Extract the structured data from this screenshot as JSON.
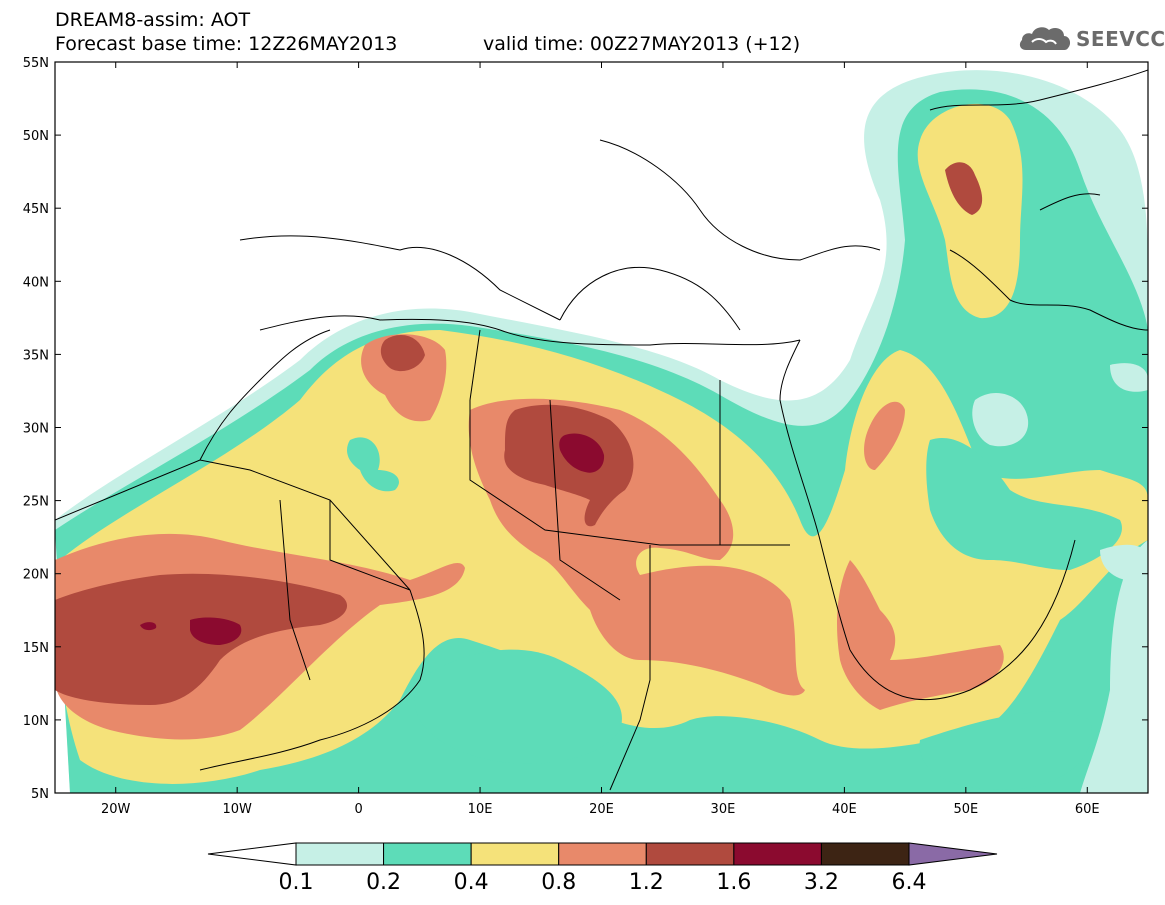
{
  "header": {
    "title_line1": "DREAM8-assim: AOT",
    "title_line2": "Forecast base time: 12Z26MAY2013",
    "valid_time": "valid time: 00Z27MAY2013 (+12)"
  },
  "logo": {
    "name": "cloud-icon",
    "text": "SEEVCCC"
  },
  "map": {
    "lon_range": [
      -25,
      65
    ],
    "lat_range": [
      5,
      55
    ],
    "lat_ticks": [
      "5N",
      "10N",
      "15N",
      "20N",
      "25N",
      "30N",
      "35N",
      "40N",
      "45N",
      "50N",
      "55N"
    ],
    "lon_ticks": [
      "20W",
      "10W",
      "0",
      "10E",
      "20E",
      "30E",
      "40E",
      "50E",
      "60E"
    ],
    "variable": "Aerosol optical thickness"
  },
  "colorbar": {
    "colors": [
      "#ffffff",
      "#c6f0e6",
      "#5ddcb8",
      "#f5e27a",
      "#e8896a",
      "#b04a3e",
      "#8b0a2f",
      "#3d2414",
      "#8a6aa6"
    ],
    "levels": [
      "0.1",
      "0.2",
      "0.4",
      "0.8",
      "1.2",
      "1.6",
      "3.2",
      "6.4"
    ]
  }
}
